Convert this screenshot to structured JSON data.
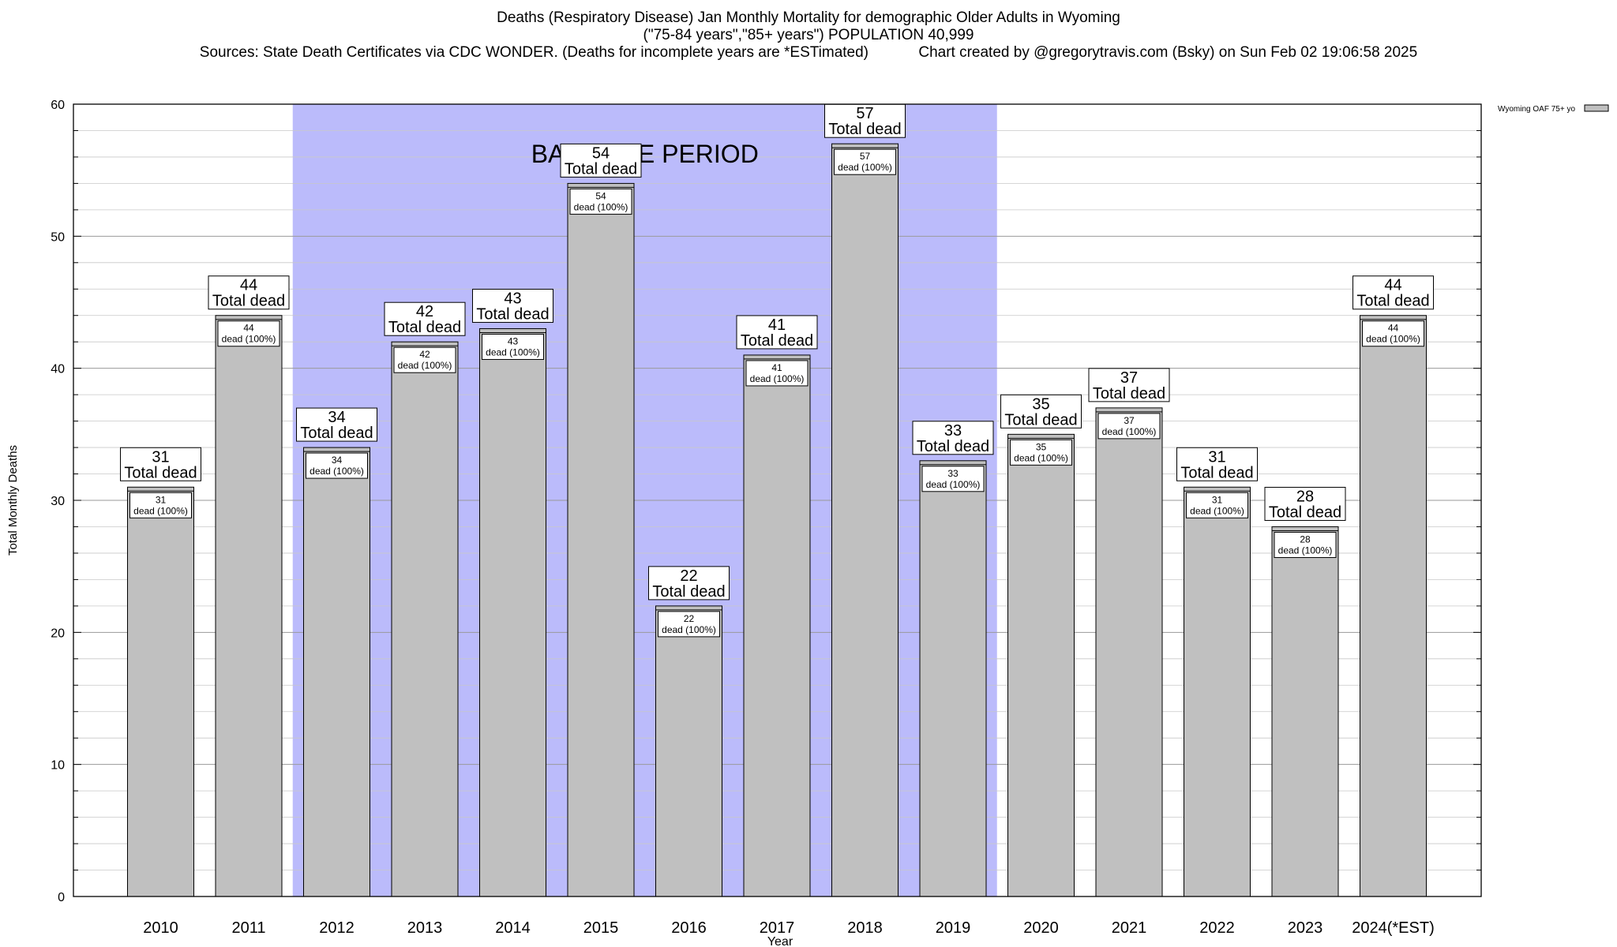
{
  "title": {
    "line1": "Deaths (Respiratory Disease) Jan Monthly Mortality for demographic Older Adults in Wyoming",
    "line2": "(\"75-84 years\",\"85+ years\") POPULATION 40,999",
    "line3_left": "Sources: State Death Certificates via CDC WONDER. (Deaths for incomplete years are *ESTimated)",
    "line3_right": "Chart created by @gregorytravis.com (Bsky) on Sun Feb 02 19:06:58 2025"
  },
  "chart_data": {
    "type": "bar",
    "categories": [
      "2010",
      "2011",
      "2012",
      "2013",
      "2014",
      "2015",
      "2016",
      "2017",
      "2018",
      "2019",
      "2020",
      "2021",
      "2022",
      "2023",
      "2024(*EST)"
    ],
    "series": [
      {
        "name": "Wyoming OAF 75+ yo",
        "values": [
          31,
          44,
          34,
          42,
          43,
          54,
          22,
          41,
          57,
          33,
          35,
          37,
          31,
          28,
          44
        ]
      }
    ],
    "inner_labels": [
      "dead (100%)",
      "dead (100%)",
      "dead (100%)",
      "dead (100%)",
      "dead (100%)",
      "dead (100%)",
      "dead (100%)",
      "dead (100%)",
      "dead (100%)",
      "dead (100%)",
      "dead (100%)",
      "dead (100%)",
      "dead (100%)",
      "dead (100%)",
      "dead (100%)"
    ],
    "total_label": "Total dead",
    "xlabel": "Year",
    "ylabel": "Total Monthly Deaths",
    "ylim": [
      0,
      60
    ],
    "yticks": [
      0,
      10,
      20,
      30,
      40,
      50,
      60
    ],
    "grid": true,
    "legend_position": "top-right",
    "baseline": {
      "label": "BASELINE PERIOD",
      "from_category": "2012",
      "to_category": "2019",
      "color": "#bbbbfb"
    },
    "bar_color": "#c0c0c0"
  }
}
